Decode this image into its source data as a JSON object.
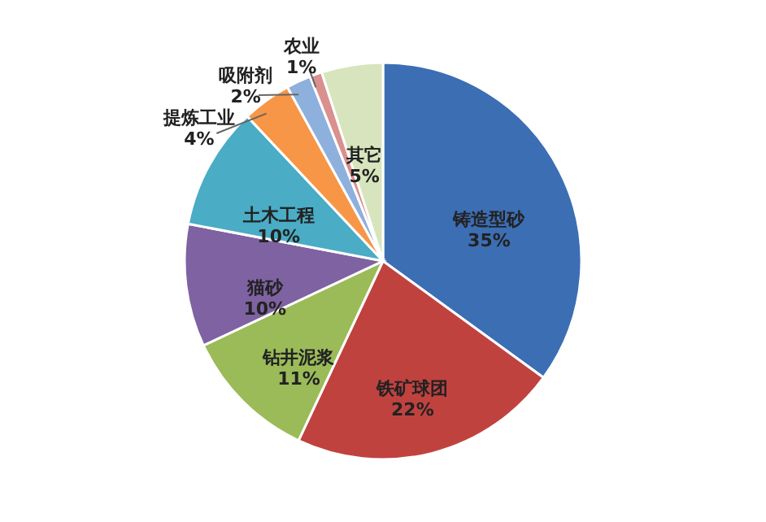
{
  "chart_data": {
    "type": "pie",
    "categories": [
      "铸造型砂",
      "铁矿球团",
      "钻井泥浆",
      "猫砂",
      "土木工程",
      "提炼工业",
      "吸附剂",
      "农业",
      "其它"
    ],
    "values": [
      35,
      22,
      11,
      10,
      10,
      4,
      2,
      1,
      5
    ],
    "colors": [
      "#3c6eb4",
      "#c0423f",
      "#9bbb59",
      "#7f62a1",
      "#4aacc5",
      "#f79646",
      "#8eb0dc",
      "#d9908e",
      "#d7e4bd"
    ],
    "value_labels": [
      "35%",
      "22%",
      "11%",
      "10%",
      "10%",
      "4%",
      "2%",
      "1%",
      "5%"
    ]
  }
}
